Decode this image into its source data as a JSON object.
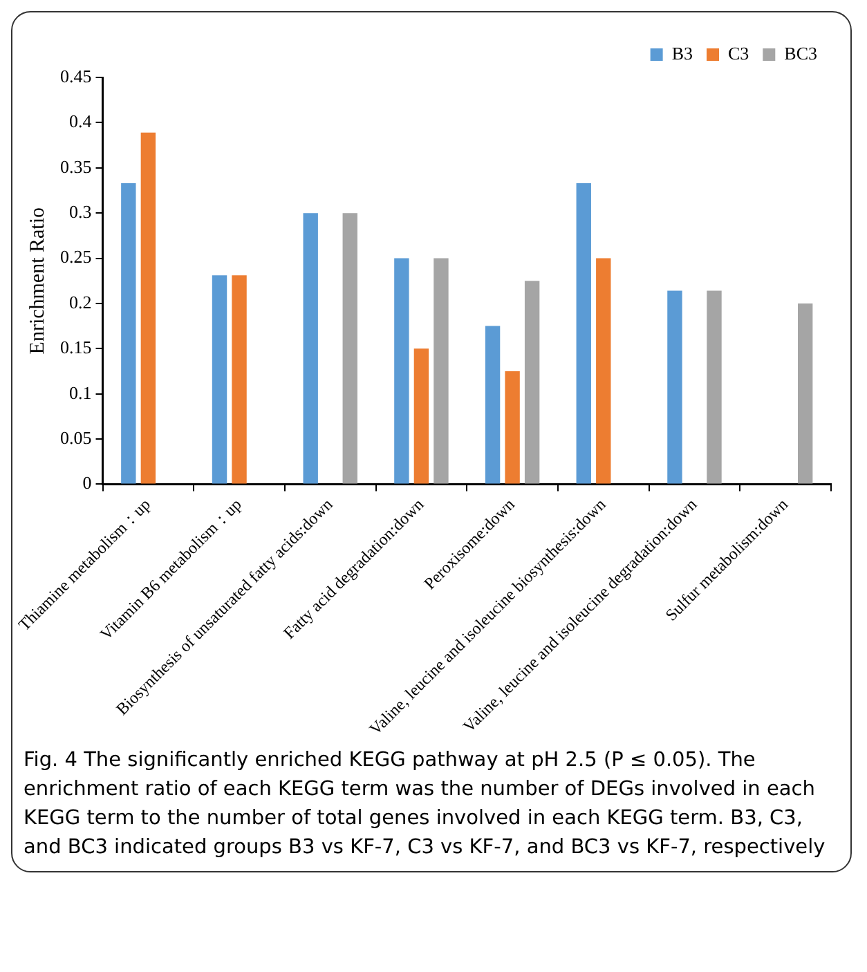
{
  "chart_data": {
    "type": "bar",
    "categories": [
      "Thiamine metabolism：up",
      "Vitamin B6 metabolism：up",
      "Biosynthesis of unsaturated fatty acids:down",
      "Fatty acid degradation:down",
      "Peroxisome:down",
      "Valine, leucine and isoleucine biosynthesis:down",
      "Valine, leucine and isoleucine degradation:down",
      "Sulfur metabolism:down"
    ],
    "series": [
      {
        "name": "B3",
        "color": "#5b9bd5",
        "values": [
          0.333,
          0.231,
          0.3,
          0.25,
          0.175,
          0.333,
          0.214,
          null
        ]
      },
      {
        "name": "C3",
        "color": "#ed7d31",
        "values": [
          0.389,
          0.231,
          null,
          0.15,
          0.125,
          0.25,
          null,
          null
        ]
      },
      {
        "name": "BC3",
        "color": "#a5a5a5",
        "values": [
          null,
          null,
          0.3,
          0.25,
          0.225,
          null,
          0.214,
          0.2
        ]
      }
    ],
    "ylabel": "Enrichment Ratio",
    "ylim": [
      0,
      0.45
    ],
    "yticks": [
      0,
      0.05,
      0.1,
      0.15,
      0.2,
      0.25,
      0.3,
      0.35,
      0.4,
      0.45
    ],
    "grid": false,
    "legend": "top right",
    "annotations": [
      "Fig. 4 The significantly enriched KEGG pathway at pH 2.5 (P ≤ 0.05). The enrichment ratio of each KEGG term was the number of DEGs involved in each KEGG term to the number of total genes involved in each KEGG term. B3, C3, and BC3 indicated groups B3 vs KF-7, C3 vs KF-7, and BC3 vs KF-7, respectively"
    ]
  }
}
